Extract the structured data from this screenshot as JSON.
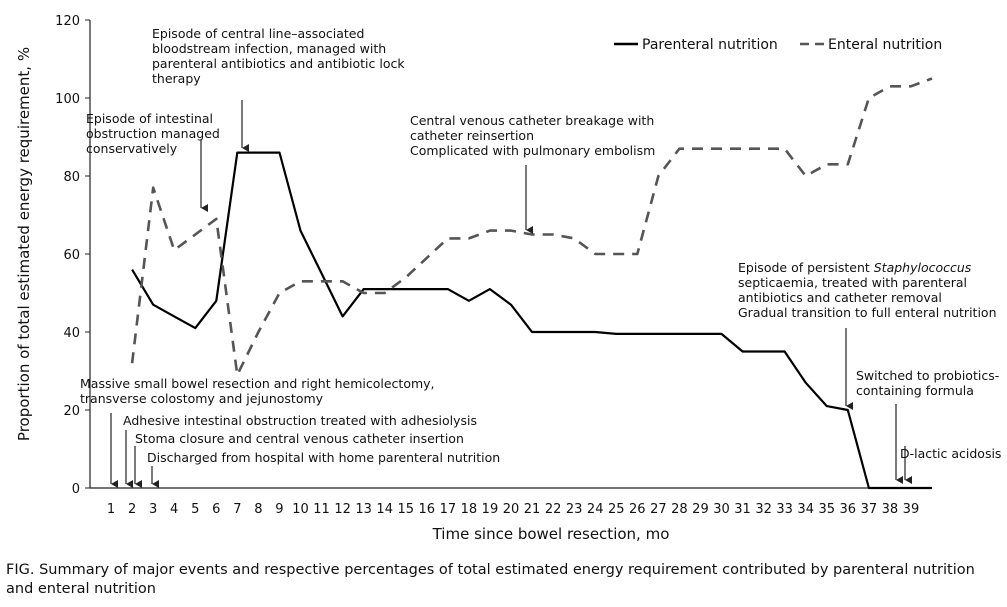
{
  "chart_data": {
    "type": "line",
    "title": "",
    "xlabel": "Time since bowel resection, mo",
    "ylabel": "Proportion of total estimated energy requirement, %",
    "xlim": [
      0,
      40
    ],
    "ylim": [
      0,
      120
    ],
    "x_ticks": [
      1,
      2,
      3,
      4,
      5,
      6,
      7,
      8,
      9,
      10,
      11,
      12,
      13,
      14,
      15,
      16,
      17,
      18,
      19,
      20,
      21,
      22,
      23,
      24,
      25,
      26,
      27,
      28,
      29,
      30,
      31,
      32,
      33,
      34,
      35,
      36,
      37,
      38,
      39
    ],
    "y_ticks": [
      0,
      20,
      40,
      60,
      80,
      100,
      120
    ],
    "grid": false,
    "legend_position": "top-right",
    "series": [
      {
        "name": "Parenteral nutrition",
        "style": "solid",
        "color": "#000000",
        "points": [
          [
            2,
            56
          ],
          [
            3,
            47
          ],
          [
            4,
            44
          ],
          [
            5,
            41
          ],
          [
            6,
            48
          ],
          [
            7,
            86
          ],
          [
            8,
            86
          ],
          [
            9,
            86
          ],
          [
            10,
            66
          ],
          [
            11,
            55
          ],
          [
            12,
            44
          ],
          [
            13,
            51
          ],
          [
            14,
            51
          ],
          [
            15,
            51
          ],
          [
            16,
            51
          ],
          [
            17,
            51
          ],
          [
            18,
            48
          ],
          [
            19,
            51
          ],
          [
            20,
            47
          ],
          [
            21,
            40
          ],
          [
            22,
            40
          ],
          [
            23,
            40
          ],
          [
            24,
            40
          ],
          [
            25,
            39.5
          ],
          [
            26,
            39.5
          ],
          [
            27,
            39.5
          ],
          [
            28,
            39.5
          ],
          [
            29,
            39.5
          ],
          [
            30,
            39.5
          ],
          [
            31,
            35
          ],
          [
            32,
            35
          ],
          [
            33,
            35
          ],
          [
            34,
            27
          ],
          [
            35,
            21
          ],
          [
            36,
            20
          ],
          [
            37,
            0
          ],
          [
            38,
            0
          ],
          [
            39,
            0
          ],
          [
            40,
            0
          ]
        ]
      },
      {
        "name": "Enteral nutrition",
        "style": "dashed",
        "color": "#555555",
        "points": [
          [
            2,
            32
          ],
          [
            3,
            77
          ],
          [
            4,
            61
          ],
          [
            5,
            65
          ],
          [
            6,
            69
          ],
          [
            7,
            29
          ],
          [
            8,
            40
          ],
          [
            9,
            50
          ],
          [
            10,
            53
          ],
          [
            11,
            53
          ],
          [
            12,
            53
          ],
          [
            13,
            50
          ],
          [
            14,
            50
          ],
          [
            15,
            54
          ],
          [
            16,
            59
          ],
          [
            17,
            64
          ],
          [
            18,
            64
          ],
          [
            19,
            66
          ],
          [
            20,
            66
          ],
          [
            21,
            65
          ],
          [
            22,
            65
          ],
          [
            23,
            64
          ],
          [
            24,
            60
          ],
          [
            25,
            60
          ],
          [
            26,
            60
          ],
          [
            27,
            80
          ],
          [
            28,
            87
          ],
          [
            29,
            87
          ],
          [
            30,
            87
          ],
          [
            31,
            87
          ],
          [
            32,
            87
          ],
          [
            33,
            87
          ],
          [
            34,
            80
          ],
          [
            35,
            83
          ],
          [
            36,
            83
          ],
          [
            37,
            100
          ],
          [
            38,
            103
          ],
          [
            39,
            103
          ],
          [
            40,
            105
          ]
        ]
      }
    ],
    "annotations": [
      {
        "lines": [
          "Episode of central line–associated",
          "bloodstream infection, managed with",
          "parenteral antibiotics and antibiotic lock",
          "therapy"
        ],
        "arrow_x": 7
      },
      {
        "lines": [
          "Episode of intestinal",
          "obstruction managed",
          "conservatively"
        ],
        "arrow_x": 5.5
      },
      {
        "lines": [
          "Central venous catheter breakage with",
          "catheter reinsertion",
          "Complicated with pulmonary embolism"
        ],
        "arrow_x": 21
      },
      {
        "lines": [
          "Episode of persistent Staphylococcus",
          "septicaemia, treated with parenteral",
          "antibiotics and catheter removal",
          "Gradual transition to full enteral nutrition"
        ],
        "arrow_x": 36.5
      },
      {
        "lines": [
          "Massive small bowel resection and right hemicolectomy,",
          "transverse colostomy and jejunostomy"
        ],
        "arrow_x": 1
      },
      {
        "lines": [
          "Adhesive intestinal obstruction treated with adhesiolysis"
        ],
        "arrow_x": 1.6
      },
      {
        "lines": [
          "Stoma closure and central venous catheter insertion"
        ],
        "arrow_x": 2
      },
      {
        "lines": [
          "Discharged from hospital with home parenteral nutrition"
        ],
        "arrow_x": 3
      },
      {
        "lines": [
          "Switched to probiotics-",
          "containing formula"
        ],
        "arrow_x": 38.5
      },
      {
        "lines": [
          "D-lactic acidosis"
        ],
        "arrow_x": 39
      }
    ]
  },
  "caption": "FIG. Summary of major events and respective percentages of total estimated energy requirement contributed by parenteral nutrition and enteral nutrition"
}
